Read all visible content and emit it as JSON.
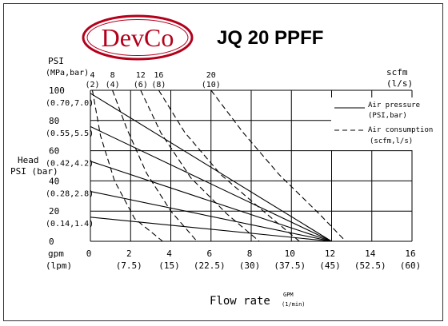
{
  "logo": {
    "text": "DevCo",
    "ring_color": "#b3001b",
    "text_color": "#b3001b"
  },
  "model": "JQ 20 PPFF",
  "left_axis": {
    "title_line1": "PSI",
    "title_line2": "(MPa,bar)",
    "head_label_line1": "Head",
    "head_label_line2": "PSI (bar)",
    "ticks": [
      {
        "value": 100,
        "label": "100",
        "sub": "(0.70,7.0)"
      },
      {
        "value": 80,
        "label": "80",
        "sub": "(0.55,5.5)"
      },
      {
        "value": 60,
        "label": "60",
        "sub": "(0.42,4.2)"
      },
      {
        "value": 40,
        "label": "40",
        "sub": "(0.28,2.8)"
      },
      {
        "value": 20,
        "label": "20",
        "sub": "(0.14,1.4)"
      },
      {
        "value": 0,
        "label": "0",
        "sub": ""
      }
    ]
  },
  "top_axis": {
    "title_line1": "scfm",
    "title_line2": "(l/s)",
    "ticks": [
      {
        "label": "4",
        "sub": "(2)"
      },
      {
        "label": "8",
        "sub": "(4)"
      },
      {
        "label": "12",
        "sub": "(6)"
      },
      {
        "label": "16",
        "sub": "(8)"
      },
      {
        "label": "20",
        "sub": "(10)"
      }
    ]
  },
  "bottom_axis": {
    "unit_line1": "gpm",
    "unit_line2": "(lpm)",
    "ticks": [
      {
        "value": 0,
        "label": "0",
        "sub": ""
      },
      {
        "value": 2,
        "label": "2",
        "sub": "(7.5)"
      },
      {
        "value": 4,
        "label": "4",
        "sub": "(15)"
      },
      {
        "value": 6,
        "label": "6",
        "sub": "(22.5)"
      },
      {
        "value": 8,
        "label": "8",
        "sub": "(30)"
      },
      {
        "value": 10,
        "label": "10",
        "sub": "(37.5)"
      },
      {
        "value": 12,
        "label": "12",
        "sub": "(45)"
      },
      {
        "value": 14,
        "label": "14",
        "sub": "(52.5)"
      },
      {
        "value": 16,
        "label": "16",
        "sub": "(60)"
      }
    ],
    "title": "Flow rate",
    "title_unit_line1": "GPM",
    "title_unit_line2": "(1/min)"
  },
  "legend": {
    "air_pressure_line1": "Air pressure",
    "air_pressure_line2": "(PSI,bar)",
    "air_consumption_line1": "Air consumption",
    "air_consumption_line2": "(scfm,l/s)"
  },
  "chart_data": {
    "type": "line",
    "title": "JQ 20 PPFF",
    "xlabel": "Flow rate",
    "ylabel": "Head PSI (bar)",
    "xlim": [
      0,
      16
    ],
    "ylim": [
      0,
      100
    ],
    "grid": true,
    "legend_position": "top-right",
    "series": [
      {
        "name": "Air pressure",
        "line": "solid",
        "x": [
          0,
          12
        ],
        "y": [
          98,
          0
        ]
      },
      {
        "name": "Air pressure",
        "line": "solid",
        "x": [
          0,
          12
        ],
        "y": [
          76,
          0
        ]
      },
      {
        "name": "Air pressure",
        "line": "solid",
        "x": [
          0,
          12
        ],
        "y": [
          53,
          0
        ]
      },
      {
        "name": "Air pressure",
        "line": "solid",
        "x": [
          0,
          12
        ],
        "y": [
          33,
          0
        ]
      },
      {
        "name": "Air pressure",
        "line": "solid",
        "x": [
          0,
          12
        ],
        "y": [
          16,
          0
        ]
      },
      {
        "name": "Air consumption",
        "line": "dashed",
        "x": [
          0.1,
          0.5,
          1.2,
          2.2,
          3.6
        ],
        "y": [
          100,
          70,
          40,
          15,
          0
        ]
      },
      {
        "name": "Air consumption",
        "line": "dashed",
        "x": [
          1.1,
          1.8,
          2.8,
          4.0,
          5.3
        ],
        "y": [
          100,
          75,
          45,
          20,
          0
        ]
      },
      {
        "name": "Air consumption",
        "line": "dashed",
        "x": [
          2.5,
          3.5,
          5.0,
          6.8,
          8.4
        ],
        "y": [
          100,
          72,
          42,
          18,
          0
        ]
      },
      {
        "name": "Air consumption",
        "line": "dashed",
        "x": [
          3.4,
          4.7,
          6.5,
          8.6,
          10.4
        ],
        "y": [
          100,
          72,
          44,
          20,
          0
        ]
      },
      {
        "name": "Air consumption",
        "line": "dashed",
        "x": [
          6.0,
          7.6,
          9.4,
          11.4,
          12.7
        ],
        "y": [
          100,
          72,
          44,
          18,
          0
        ]
      }
    ]
  }
}
